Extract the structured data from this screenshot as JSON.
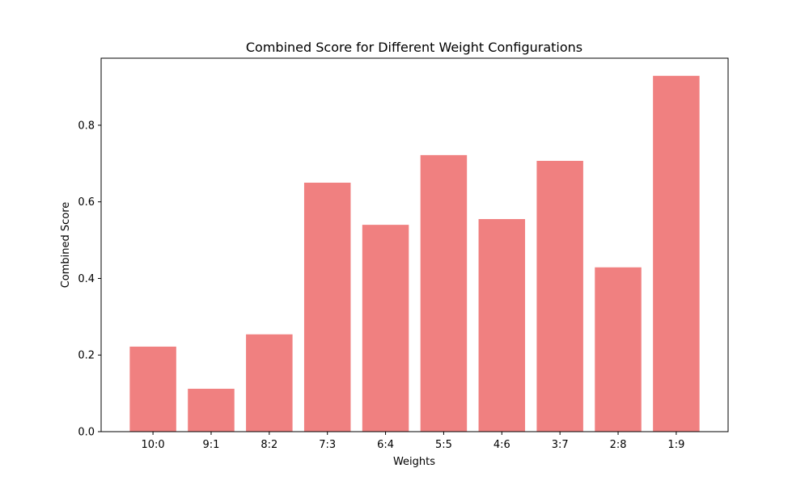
{
  "chart_data": {
    "type": "bar",
    "title": "Combined Score for Different Weight Configurations",
    "xlabel": "Weights",
    "ylabel": "Combined Score",
    "categories": [
      "10:0",
      "9:1",
      "8:2",
      "7:3",
      "6:4",
      "5:5",
      "4:6",
      "3:7",
      "2:8",
      "1:9"
    ],
    "values": [
      0.222,
      0.112,
      0.254,
      0.65,
      0.54,
      0.722,
      0.555,
      0.707,
      0.429,
      0.929
    ],
    "ylim": [
      0,
      0.975
    ],
    "yticks": [
      0.0,
      0.2,
      0.4,
      0.6,
      0.8
    ],
    "ytick_labels": [
      "0.0",
      "0.2",
      "0.4",
      "0.6",
      "0.8"
    ],
    "bar_color": "#f08080",
    "grid": false,
    "legend": "none"
  }
}
